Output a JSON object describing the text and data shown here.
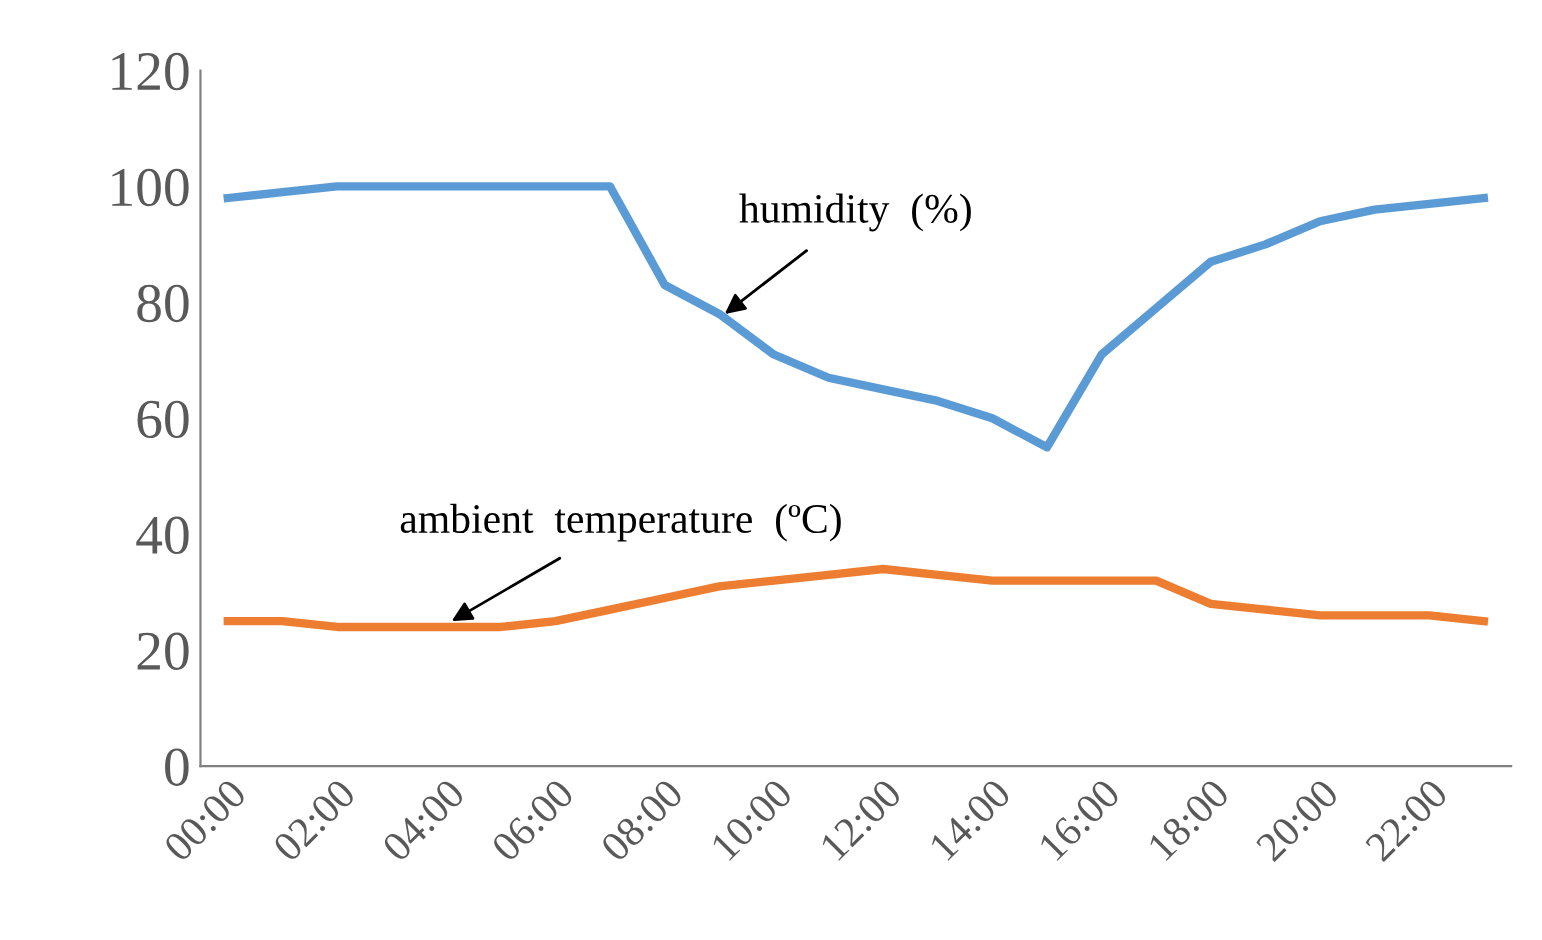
{
  "chart_data": {
    "type": "line",
    "x": [
      0,
      1,
      2,
      3,
      4,
      5,
      6,
      7,
      8,
      9,
      10,
      11,
      12,
      13,
      14,
      15,
      16,
      17,
      18,
      19,
      20,
      21,
      22,
      23
    ],
    "xlim": [
      -0.5,
      23.5
    ],
    "xticks": [
      {
        "value": 0,
        "label": "00:00"
      },
      {
        "value": 2,
        "label": "02:00"
      },
      {
        "value": 4,
        "label": "04:00"
      },
      {
        "value": 6,
        "label": "06:00"
      },
      {
        "value": 8,
        "label": "08:00"
      },
      {
        "value": 10,
        "label": "10:00"
      },
      {
        "value": 12,
        "label": "12:00"
      },
      {
        "value": 14,
        "label": "14:00"
      },
      {
        "value": 16,
        "label": "16:00"
      },
      {
        "value": 18,
        "label": "18:00"
      },
      {
        "value": 20,
        "label": "20:00"
      },
      {
        "value": 22,
        "label": "22:00"
      }
    ],
    "ylim": [
      0,
      120
    ],
    "yticks": [
      0,
      20,
      40,
      60,
      80,
      100,
      120
    ],
    "grid": false,
    "legend": false,
    "marker": "none",
    "line_style": "solid",
    "series": [
      {
        "color": "#5b9bd5",
        "values": [
          98,
          99,
          100,
          100,
          100,
          100,
          100,
          100,
          83,
          78,
          71,
          67,
          65,
          63,
          60,
          55,
          71,
          79,
          87,
          90,
          94,
          96,
          97,
          98
        ]
      },
      {
        "color": "#ed7d31",
        "values": [
          25,
          25,
          24,
          24,
          24,
          24,
          25,
          27,
          29,
          31,
          32,
          33,
          34,
          33,
          32,
          32,
          32,
          32,
          28,
          27,
          26,
          26,
          26,
          25
        ]
      }
    ],
    "annotations": [
      {
        "text": "humidity  (%)",
        "x": 9.1,
        "y": 78
      },
      {
        "text": "ambient  temperature  (ºC)",
        "x": 4.1,
        "y": 25
      }
    ]
  }
}
